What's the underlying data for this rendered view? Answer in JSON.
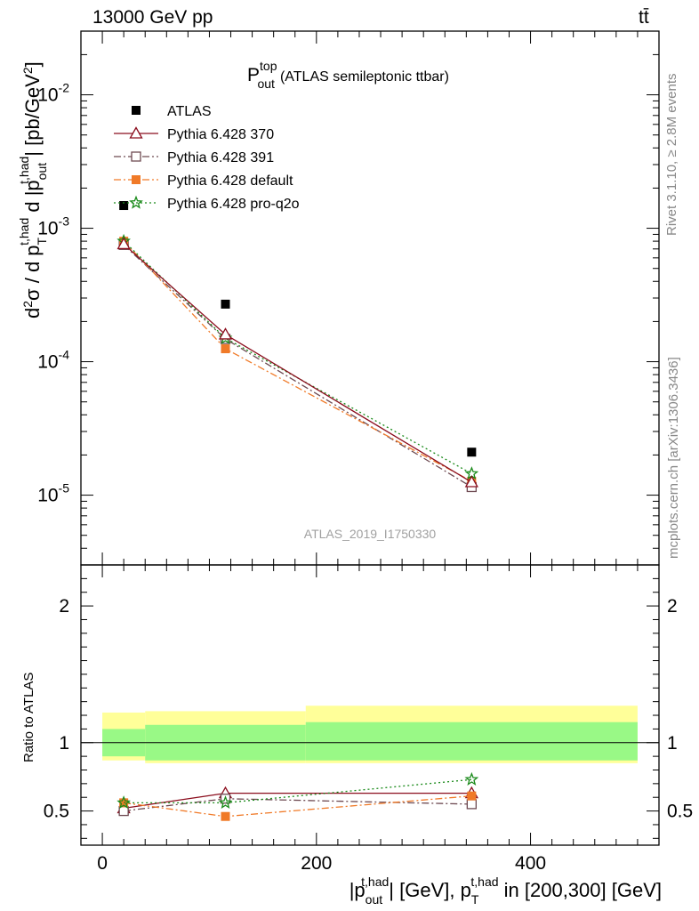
{
  "header": {
    "energy": "13000 GeV pp",
    "process": "tt̄"
  },
  "side_labels": {
    "rivet": "Rivet 3.1.10, ≥ 2.8M events",
    "mcplots": "mcplots.cern.ch [arXiv:1306.3436]"
  },
  "plot_title": {
    "main": "P",
    "sup": "top",
    "sub": "out",
    "suffix": "(ATLAS semileptonic ttbar)"
  },
  "watermark": "ATLAS_2019_I1750330",
  "y_axis_label": {
    "p1": "d",
    "p1sup": "2",
    "p2": "σ / d p",
    "p2sub": "T",
    "p2sup": "t,had",
    "p3": " d |p",
    "p3sub": "out",
    "p3sup": "t,had",
    "p4": "| [pb/GeV",
    "p4sup": "2",
    "p5": "]"
  },
  "ratio_label": "Ratio to ATLAS",
  "x_axis_label": {
    "p1": "|p",
    "p1sub": "out",
    "p1sup": "t,had",
    "p2": "| [GeV], p",
    "p2sub": "T",
    "p2sup": "t,had",
    "p3": " in [200,300] [GeV]"
  },
  "colors": {
    "atlas": "#000000",
    "p370": "#8b0d1d",
    "p391": "#6e4a52",
    "default": "#f07a28",
    "proq2o": "#1a8a1a",
    "band_inner": "#99f986",
    "band_outer": "#ffff99"
  },
  "chart_data": [
    {
      "type": "scatter",
      "panel": "main",
      "x": [
        20,
        115,
        345
      ],
      "x_bins": [
        [
          0,
          40
        ],
        [
          40,
          190
        ],
        [
          190,
          500
        ]
      ],
      "xlim": [
        -20,
        520
      ],
      "ylim": [
        3e-06,
        0.03
      ],
      "y_scale": "log",
      "y_ticks": [
        {
          "v": 0.01,
          "base": "10",
          "exp": "-2"
        },
        {
          "v": 0.001,
          "base": "10",
          "exp": "-3"
        },
        {
          "v": 0.0001,
          "base": "10",
          "exp": "-4"
        },
        {
          "v": 1e-05,
          "base": "10",
          "exp": "-5"
        }
      ],
      "legend_position": "top-left",
      "series": [
        {
          "key": "atlas",
          "name": "ATLAS",
          "marker": "square",
          "values": [
            0.00148,
            0.00027,
            2.1e-05
          ]
        },
        {
          "key": "p370",
          "name": "Pythia 6.428 370",
          "marker": "triangle-open",
          "line": "solid",
          "values": [
            0.00076,
            0.00016,
            1.25e-05
          ]
        },
        {
          "key": "p391",
          "name": "Pythia 6.428 391",
          "marker": "square-open",
          "line": "dashdot",
          "values": [
            0.00075,
            0.000148,
            1.15e-05
          ]
        },
        {
          "key": "default",
          "name": "Pythia 6.428 default",
          "marker": "square",
          "line": "dashdot",
          "values": [
            0.0008,
            0.000125,
            1.27e-05
          ]
        },
        {
          "key": "proq2o",
          "name": "Pythia 6.428 pro-q2o",
          "marker": "star",
          "line": "dotted",
          "values": [
            0.0008,
            0.00015,
            1.45e-05
          ]
        }
      ]
    },
    {
      "type": "scatter",
      "panel": "ratio",
      "xlim": [
        -20,
        520
      ],
      "ylim": [
        0.25,
        2.3
      ],
      "x_ticks": [
        0,
        200,
        400
      ],
      "y_ticks": [
        0.5,
        1,
        2
      ],
      "band_bins": [
        [
          0,
          40
        ],
        [
          40,
          190
        ],
        [
          190,
          500
        ]
      ],
      "band_inner": [
        [
          0.9,
          1.1
        ],
        [
          0.87,
          1.13
        ],
        [
          0.87,
          1.15
        ]
      ],
      "band_outer": [
        [
          0.87,
          1.22
        ],
        [
          0.85,
          1.23
        ],
        [
          0.85,
          1.27
        ]
      ],
      "series": [
        {
          "key": "p370",
          "name": "Pythia 6.428 370",
          "values": [
            0.52,
            0.63,
            0.63
          ]
        },
        {
          "key": "p391",
          "name": "Pythia 6.428 391",
          "values": [
            0.5,
            0.59,
            0.55
          ]
        },
        {
          "key": "default",
          "name": "Pythia 6.428 default",
          "values": [
            0.56,
            0.46,
            0.61
          ]
        },
        {
          "key": "proq2o",
          "name": "Pythia 6.428 pro-q2o",
          "values": [
            0.56,
            0.56,
            0.73
          ]
        }
      ]
    }
  ]
}
